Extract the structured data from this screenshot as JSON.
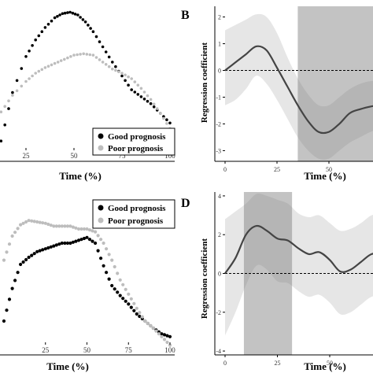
{
  "chart_data": [
    {
      "panel": "A",
      "type": "scatter",
      "label": "",
      "xlabel": "Time (%)",
      "ylabel": "",
      "xlim": [
        0,
        100
      ],
      "xticks": [
        25,
        50,
        75,
        100
      ],
      "ylim": [
        0,
        100
      ],
      "legend": "bottom-right",
      "legend_entries": [
        "Good prognosis",
        "Poor prognosis"
      ],
      "series": [
        {
          "name": "Good prognosis",
          "color": "#000000",
          "x": [
            12,
            18,
            25,
            30,
            35,
            40,
            44,
            48,
            52,
            56,
            60,
            65,
            70,
            75,
            80,
            85,
            90,
            95,
            100
          ],
          "y": [
            5,
            40,
            66,
            78,
            87,
            94,
            97,
            98,
            96,
            91,
            84,
            73,
            62,
            52,
            42,
            37,
            32,
            25,
            18
          ]
        },
        {
          "name": "Poor prognosis",
          "color": "#bdbdbd",
          "x": [
            12,
            18,
            25,
            30,
            35,
            40,
            45,
            50,
            55,
            60,
            65,
            70,
            75,
            80,
            85,
            90,
            95,
            100
          ],
          "y": [
            26,
            38,
            48,
            54,
            58,
            61,
            64,
            67,
            68,
            67,
            62,
            57,
            54,
            50,
            43,
            35,
            25,
            14
          ]
        }
      ]
    },
    {
      "panel": "B",
      "type": "line",
      "label": "B",
      "xlabel": "Time (%)",
      "ylabel": "Regression coefficient",
      "xlim": [
        0,
        100
      ],
      "xticks": [
        0,
        25,
        50
      ],
      "ylim": [
        -3.4,
        2.4
      ],
      "yticks": [
        2,
        1,
        0,
        -1,
        -2,
        -3
      ],
      "reference_line": 0,
      "highlight": [
        35,
        100
      ],
      "series": [
        {
          "x": [
            0,
            5,
            10,
            15,
            20,
            25,
            30,
            35,
            40,
            45,
            50,
            55,
            60,
            65,
            70,
            75,
            80,
            85,
            90,
            95,
            100
          ],
          "y": [
            0,
            0.3,
            0.6,
            0.9,
            0.75,
            0.1,
            -0.6,
            -1.3,
            -1.9,
            -2.3,
            -2.3,
            -2.0,
            -1.6,
            -1.45,
            -1.35,
            -1.3,
            -1.3,
            -1.3,
            -1.3,
            -1.3,
            -1.3
          ],
          "lower": [
            -1.3,
            -1.1,
            -0.7,
            -0.2,
            -0.5,
            -1.1,
            -1.8,
            -2.5,
            -3.0,
            -3.3,
            -3.3,
            -3.0,
            -2.7,
            -2.5,
            -2.3,
            -2.2,
            -2.2,
            -2.2,
            -2.2,
            -2.2,
            -2.2
          ],
          "upper": [
            1.5,
            1.7,
            1.9,
            2.1,
            2.0,
            1.4,
            0.5,
            -0.3,
            -0.9,
            -1.3,
            -1.3,
            -1.0,
            -0.7,
            -0.5,
            -0.4,
            -0.4,
            -0.4,
            -0.4,
            -0.4,
            -0.4,
            -0.4
          ]
        }
      ]
    },
    {
      "panel": "C",
      "type": "scatter",
      "label": "",
      "xlabel": "Time (%)",
      "ylabel": "",
      "xlim": [
        0,
        100
      ],
      "xticks": [
        25,
        50,
        75,
        100
      ],
      "ylim": [
        0,
        100
      ],
      "legend": "top-right",
      "legend_entries": [
        "Good prognosis",
        "Poor prognosis"
      ],
      "series": [
        {
          "name": "Good prognosis",
          "color": "#000000",
          "x": [
            0,
            5,
            10,
            15,
            20,
            25,
            30,
            35,
            40,
            45,
            50,
            55,
            60,
            65,
            70,
            75,
            80,
            85,
            90,
            95,
            100
          ],
          "y": [
            15,
            38,
            55,
            60,
            64,
            66,
            68,
            70,
            70,
            72,
            74,
            70,
            54,
            40,
            33,
            27,
            20,
            15,
            10,
            6,
            4
          ],
          "marker_size": 3
        },
        {
          "name": "Poor prognosis",
          "color": "#bdbdbd",
          "x": [
            0,
            5,
            10,
            15,
            20,
            25,
            30,
            35,
            40,
            45,
            50,
            55,
            60,
            65,
            70,
            75,
            80,
            85,
            90,
            95,
            100
          ],
          "y": [
            58,
            75,
            83,
            86,
            85,
            84,
            82,
            82,
            82,
            80,
            80,
            78,
            70,
            58,
            44,
            34,
            24,
            15,
            10,
            4,
            -2
          ],
          "marker_size": 3
        }
      ]
    },
    {
      "panel": "D",
      "type": "line",
      "label": "D",
      "xlabel": "Time (%)",
      "ylabel": "Regression coefficient",
      "xlim": [
        0,
        100
      ],
      "xticks": [
        0,
        25,
        50
      ],
      "ylim": [
        -4.2,
        4.2
      ],
      "yticks": [
        4,
        2,
        0,
        -2,
        -4
      ],
      "reference_line": 0,
      "highlight": [
        9,
        32
      ],
      "series": [
        {
          "x": [
            0,
            5,
            10,
            15,
            20,
            25,
            30,
            35,
            40,
            45,
            50,
            55,
            60,
            65,
            70,
            75,
            80,
            85,
            90,
            95,
            100
          ],
          "y": [
            0,
            0.8,
            2.0,
            2.45,
            2.2,
            1.8,
            1.7,
            1.3,
            1.0,
            1.1,
            0.7,
            0.1,
            0.2,
            0.6,
            1.0,
            1.0,
            0.7,
            0.2,
            0.1,
            0.3,
            0.3
          ],
          "lower": [
            -3.2,
            -2.0,
            -0.6,
            0.4,
            0.2,
            -0.4,
            -0.5,
            -0.9,
            -1.2,
            -1.1,
            -1.5,
            -2.1,
            -2.0,
            -1.6,
            -1.2,
            -1.2,
            -1.5,
            -2.0,
            -2.1,
            -1.9,
            -1.9
          ],
          "upper": [
            2.8,
            3.2,
            3.6,
            4.1,
            4.0,
            3.8,
            3.6,
            3.1,
            2.9,
            3.0,
            2.6,
            2.2,
            2.3,
            2.6,
            3.0,
            3.0,
            2.8,
            2.4,
            2.3,
            2.5,
            2.5
          ]
        }
      ]
    }
  ]
}
